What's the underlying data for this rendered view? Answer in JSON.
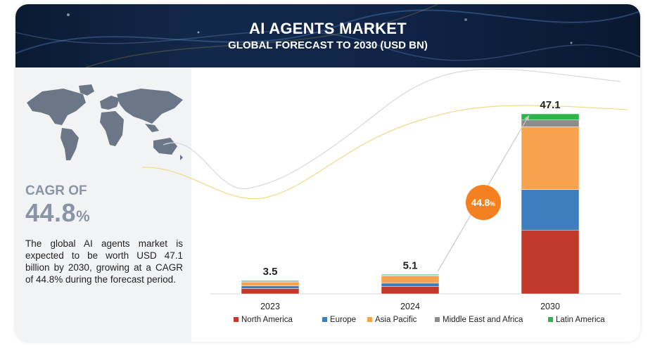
{
  "header": {
    "title": "AI AGENTS MARKET",
    "subtitle": "GLOBAL FORECAST TO 2030 (USD BN)"
  },
  "left_panel": {
    "cagr_label": "CAGR OF",
    "cagr_value": "44.8",
    "cagr_unit": "%",
    "description": "The global AI agents market is expected to be worth USD 47.1 billion by 2030, growing at a CAGR of 44.8% during the forecast period."
  },
  "colors": {
    "North America": "#c0392b",
    "Europe": "#3d7ebf",
    "Asia Pacific": "#f7a24d",
    "Middle East and Africa": "#8c8c8c",
    "Latin America": "#2db34a",
    "bubble": "#f4801f",
    "panel": "#f2f3f5"
  },
  "chart_data": {
    "type": "bar",
    "stacked": true,
    "categories": [
      "2023",
      "2024",
      "2030"
    ],
    "totals": [
      "3.5",
      "5.1",
      "47.1"
    ],
    "series": [
      {
        "name": "North America",
        "values": [
          1.4,
          1.9,
          16.7
        ]
      },
      {
        "name": "Europe",
        "values": [
          0.7,
          0.9,
          10.6
        ]
      },
      {
        "name": "Asia Pacific",
        "values": [
          1.0,
          1.9,
          16.4
        ]
      },
      {
        "name": "Middle East and Africa",
        "values": [
          0.2,
          0.2,
          1.8
        ]
      },
      {
        "name": "Latin America",
        "values": [
          0.2,
          0.2,
          1.6
        ]
      }
    ],
    "annotation": {
      "value": "44.8",
      "unit": "%"
    },
    "ylim": [
      0,
      47.1
    ],
    "grid": false,
    "legend_position": "bottom"
  }
}
